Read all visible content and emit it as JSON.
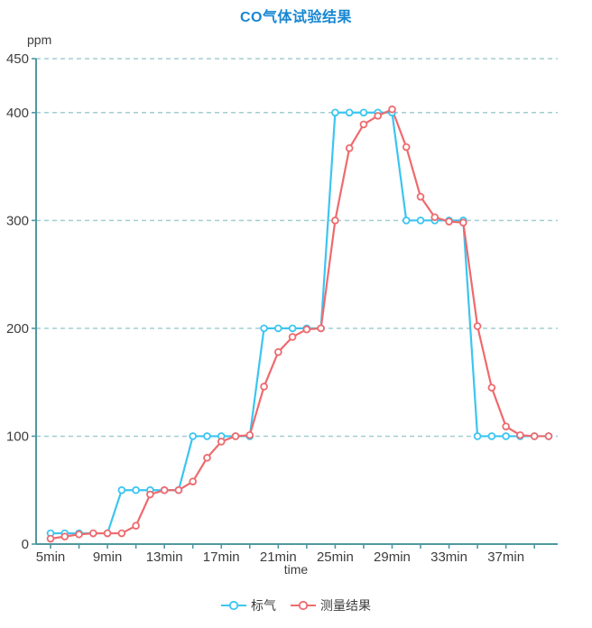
{
  "chart": {
    "title": "CO气体试验结果",
    "title_color": "#1787d2",
    "y_unit": "ppm",
    "x_title": "time",
    "axis_color": "#4f98a2",
    "grid_color": "#a2cdd2",
    "text_color": "#3d3d3d"
  },
  "chart_data": {
    "type": "line",
    "title": "CO气体试验结果",
    "xlabel": "time",
    "ylabel": "ppm",
    "x_unit": "min",
    "ylim": [
      0,
      450
    ],
    "y_ticks": [
      0,
      100,
      200,
      300,
      400,
      450
    ],
    "x_minor_tick_step": 2,
    "x_minor_tick_range": [
      5,
      39
    ],
    "x_label_positions": [
      5,
      9,
      13,
      17,
      21,
      25,
      29,
      33,
      37
    ],
    "x_tick_labels": [
      "5min",
      "9min",
      "13min",
      "17min",
      "21min",
      "25min",
      "29min",
      "33min",
      "37min"
    ],
    "grid": "dashed-horizontal",
    "legend_position": "bottom",
    "x": [
      5,
      6,
      7,
      8,
      9,
      10,
      11,
      12,
      13,
      14,
      15,
      16,
      17,
      18,
      19,
      20,
      21,
      22,
      23,
      24,
      25,
      26,
      27,
      28,
      29,
      30,
      31,
      32,
      33,
      34,
      35,
      36,
      37,
      38,
      39,
      40
    ],
    "series": [
      {
        "name": "标气",
        "color": "#3cc5f0",
        "values": [
          10,
          10,
          10,
          10,
          10,
          50,
          50,
          50,
          50,
          50,
          100,
          100,
          100,
          100,
          100,
          200,
          200,
          200,
          200,
          200,
          400,
          400,
          400,
          400,
          400,
          300,
          300,
          300,
          300,
          300,
          100,
          100,
          100,
          100,
          100,
          100
        ]
      },
      {
        "name": "测量结果",
        "color": "#ee6a6e",
        "values": [
          5,
          7,
          9,
          10,
          10,
          10,
          17,
          46,
          50,
          50,
          58,
          80,
          95,
          100,
          101,
          146,
          178,
          192,
          199,
          200,
          300,
          367,
          389,
          397,
          403,
          368,
          322,
          303,
          299,
          298,
          202,
          145,
          109,
          101,
          100,
          100
        ]
      }
    ]
  }
}
